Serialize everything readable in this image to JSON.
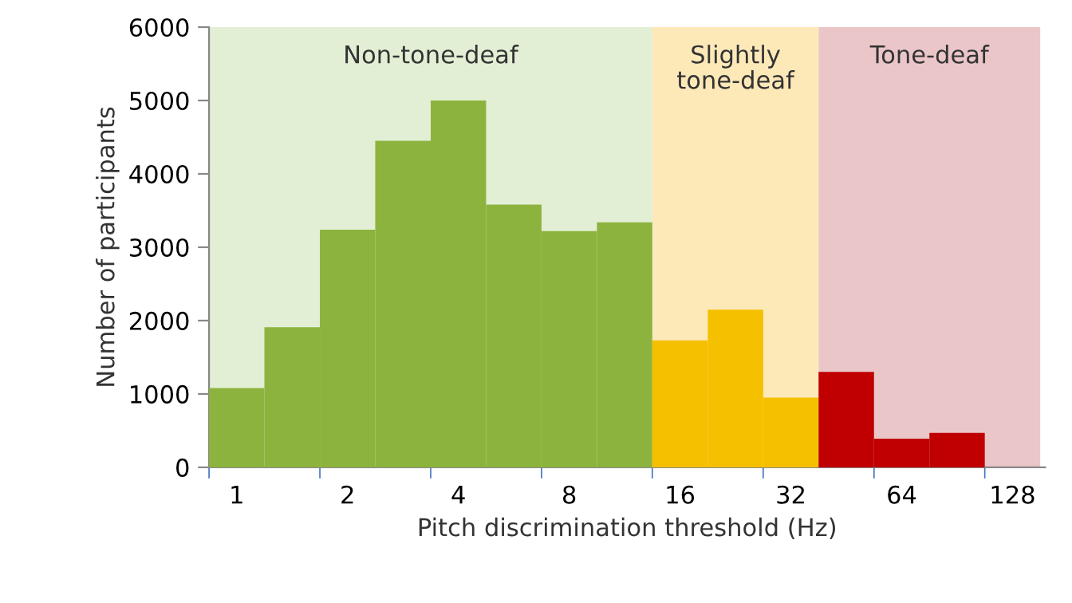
{
  "chart_data": {
    "type": "histogram",
    "xlabel": "Pitch discrimination threshold (Hz)",
    "ylabel": "Number of participants",
    "bins": [
      0.841,
      1.189,
      1.682,
      2.378,
      3.364,
      4.757,
      6.727,
      9.514,
      13.45,
      19.03,
      26.91,
      38.05,
      53.82,
      76.11,
      107.6
    ],
    "values": [
      1080,
      1910,
      3240,
      4450,
      5000,
      3580,
      3220,
      3340,
      1730,
      2150,
      950,
      1300,
      390,
      470
    ],
    "colors": [
      "#8db33f",
      "#8db33f",
      "#8db33f",
      "#8db33f",
      "#8db33f",
      "#8db33f",
      "#8db33f",
      "#8db33f",
      "#f5c000",
      "#f5c000",
      "#f5c000",
      "#c00000",
      "#c00000",
      "#c00000"
    ],
    "log": "x",
    "xlim": [
      0.841,
      157
    ],
    "xticks": [
      {
        "value": 0.841,
        "label": null
      },
      1,
      {
        "value": 1.682,
        "label": null
      },
      2,
      {
        "value": 3.364,
        "label": null
      },
      4,
      {
        "value": 6.727,
        "label": null
      },
      8,
      {
        "value": 13.45,
        "label": null
      },
      16,
      {
        "value": 26.91,
        "label": null
      },
      32,
      {
        "value": 53.82,
        "label": null
      },
      64,
      {
        "value": 107.6,
        "label": null
      },
      128
    ],
    "ylim": [
      0,
      6000
    ],
    "yticks": [
      0,
      1000,
      2000,
      3000,
      4000,
      5000,
      6000
    ],
    "grid": false,
    "bands": [
      {
        "axis": "x",
        "from": 0.841,
        "to": 13.45,
        "label": "Non-tone-deaf",
        "color": "#e2efd5"
      },
      {
        "axis": "x",
        "from": 13.45,
        "to": 38.05,
        "label": "Slightly\ntone-deaf",
        "color": "#fde9b8"
      },
      {
        "axis": "x",
        "from": 38.05,
        "to": 152.2,
        "label": "Tone-deaf",
        "color": "#ebc6c8"
      }
    ]
  }
}
